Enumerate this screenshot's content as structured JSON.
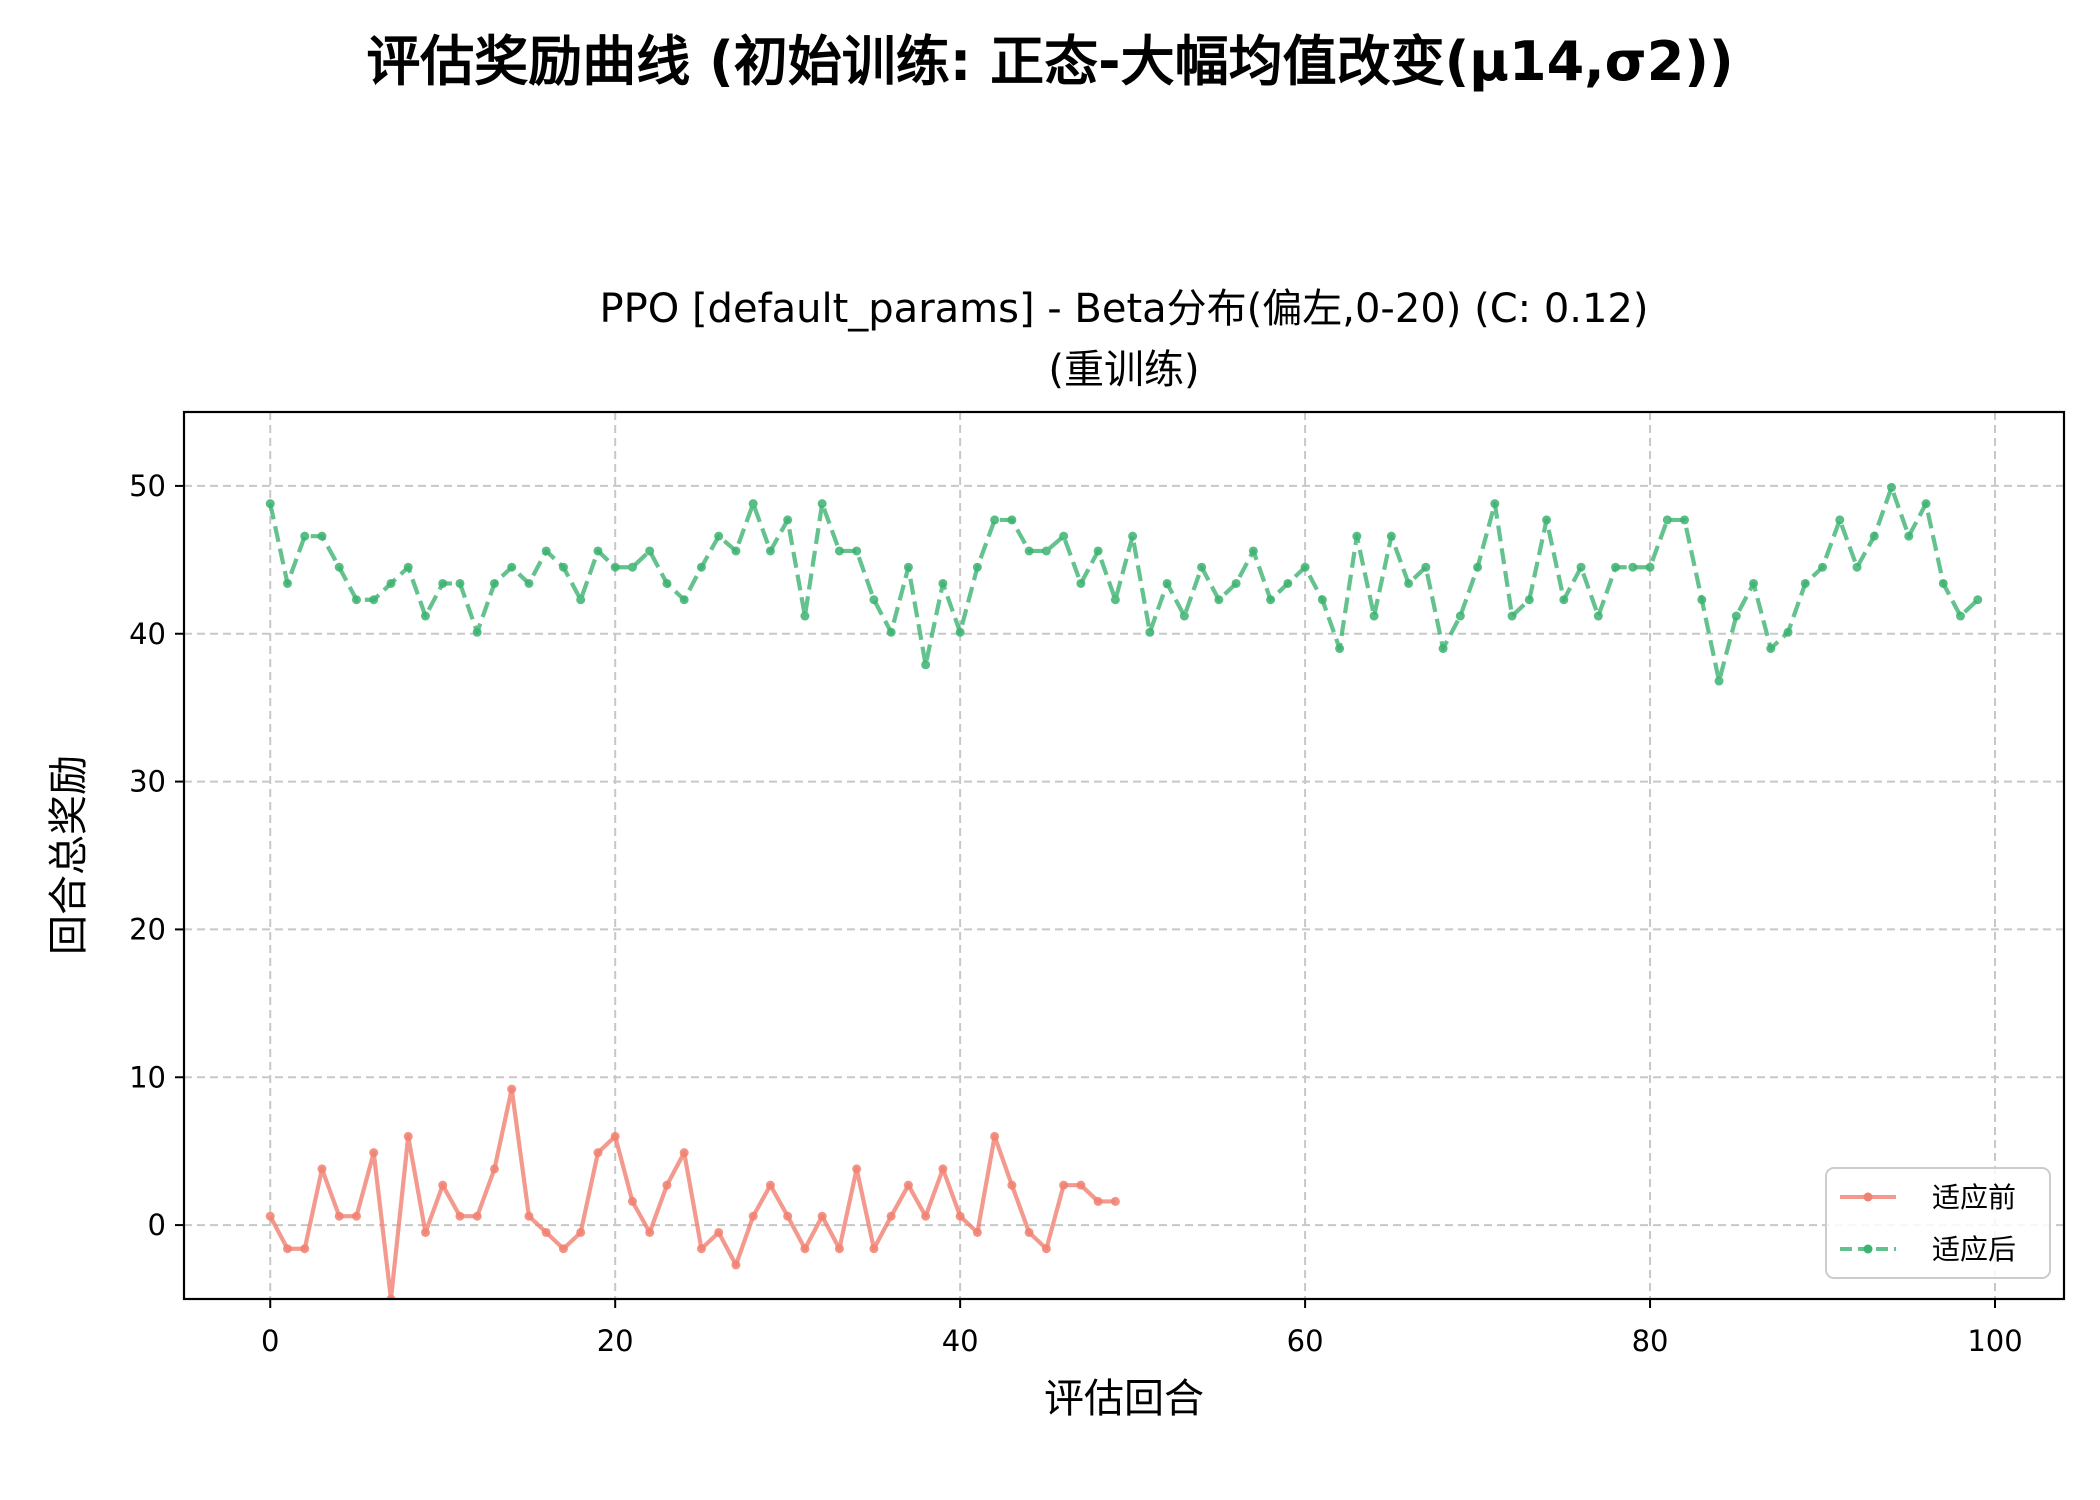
{
  "figure": {
    "suptitle": "评估奖励曲线 (初始训练: 正态-大幅均值改变(μ14,σ2))"
  },
  "chart_data": {
    "type": "line",
    "title_line1": "PPO [default_params] - Beta分布(偏左,0-20) (C: 0.12)",
    "title_line2": "(重训练)",
    "xlabel": "评估回合",
    "ylabel": "回合总奖励",
    "xlim": [
      -5,
      104
    ],
    "ylim": [
      -5,
      55
    ],
    "xticks": [
      0,
      20,
      40,
      60,
      80,
      100
    ],
    "yticks": [
      0,
      10,
      20,
      30,
      40,
      50
    ],
    "grid": true,
    "legend_position": "lower-right",
    "series": [
      {
        "name": "适应前",
        "color": "#f08070",
        "linestyle": "solid",
        "x": [
          0,
          1,
          2,
          3,
          4,
          5,
          6,
          7,
          8,
          9,
          10,
          11,
          12,
          13,
          14,
          15,
          16,
          17,
          18,
          19,
          20,
          21,
          22,
          23,
          24,
          25,
          26,
          27,
          28,
          29,
          30,
          31,
          32,
          33,
          34,
          35,
          36,
          37,
          38,
          39,
          40,
          41,
          42,
          43,
          44,
          45,
          46,
          47,
          48,
          49
        ],
        "y": [
          0.6,
          -1.6,
          -1.6,
          3.8,
          0.6,
          0.6,
          4.9,
          -5.0,
          6.0,
          -0.5,
          2.7,
          0.6,
          0.6,
          3.8,
          9.2,
          0.6,
          -0.5,
          -1.6,
          -0.5,
          4.9,
          6.0,
          1.6,
          -0.5,
          2.7,
          4.9,
          -1.6,
          -0.5,
          -2.7,
          0.6,
          2.7,
          0.6,
          -1.6,
          0.6,
          -1.6,
          3.8,
          -1.6,
          0.6,
          2.7,
          0.6,
          3.8,
          0.6,
          -0.5,
          6.0,
          2.7,
          -0.5,
          -1.6,
          2.7,
          2.7,
          1.6,
          1.6
        ]
      },
      {
        "name": "适应后",
        "color": "#3cb371",
        "linestyle": "dashed",
        "x": [
          0,
          1,
          2,
          3,
          4,
          5,
          6,
          7,
          8,
          9,
          10,
          11,
          12,
          13,
          14,
          15,
          16,
          17,
          18,
          19,
          20,
          21,
          22,
          23,
          24,
          25,
          26,
          27,
          28,
          29,
          30,
          31,
          32,
          33,
          34,
          35,
          36,
          37,
          38,
          39,
          40,
          41,
          42,
          43,
          44,
          45,
          46,
          47,
          48,
          49,
          50,
          51,
          52,
          53,
          54,
          55,
          56,
          57,
          58,
          59,
          60,
          61,
          62,
          63,
          64,
          65,
          66,
          67,
          68,
          69,
          70,
          71,
          72,
          73,
          74,
          75,
          76,
          77,
          78,
          79,
          80,
          81,
          82,
          83,
          84,
          85,
          86,
          87,
          88,
          89,
          90,
          91,
          92,
          93,
          94,
          95,
          96,
          97,
          98,
          99
        ],
        "y": [
          48.8,
          43.4,
          46.6,
          46.6,
          44.5,
          42.3,
          42.3,
          43.4,
          44.5,
          41.2,
          43.4,
          43.4,
          40.1,
          43.4,
          44.5,
          43.4,
          45.6,
          44.5,
          42.3,
          45.6,
          44.5,
          44.5,
          45.6,
          43.4,
          42.3,
          44.5,
          46.6,
          45.6,
          48.8,
          45.6,
          47.7,
          41.2,
          48.8,
          45.6,
          45.6,
          42.3,
          40.1,
          44.5,
          37.9,
          43.4,
          40.1,
          44.5,
          47.7,
          47.7,
          45.6,
          45.6,
          46.6,
          43.4,
          45.6,
          42.3,
          46.6,
          40.1,
          43.4,
          41.2,
          44.5,
          42.3,
          43.4,
          45.6,
          42.3,
          43.4,
          44.5,
          42.3,
          39.0,
          46.6,
          41.2,
          46.6,
          43.4,
          44.5,
          39.0,
          41.2,
          44.5,
          48.8,
          41.2,
          42.3,
          47.7,
          42.3,
          44.5,
          41.2,
          44.5,
          44.5,
          44.5,
          47.7,
          47.7,
          42.3,
          36.8,
          41.2,
          43.4,
          39.0,
          40.1,
          43.4,
          44.5,
          47.7,
          44.5,
          46.6,
          49.9,
          46.6,
          48.8,
          43.4,
          41.2,
          42.3
        ]
      }
    ]
  }
}
